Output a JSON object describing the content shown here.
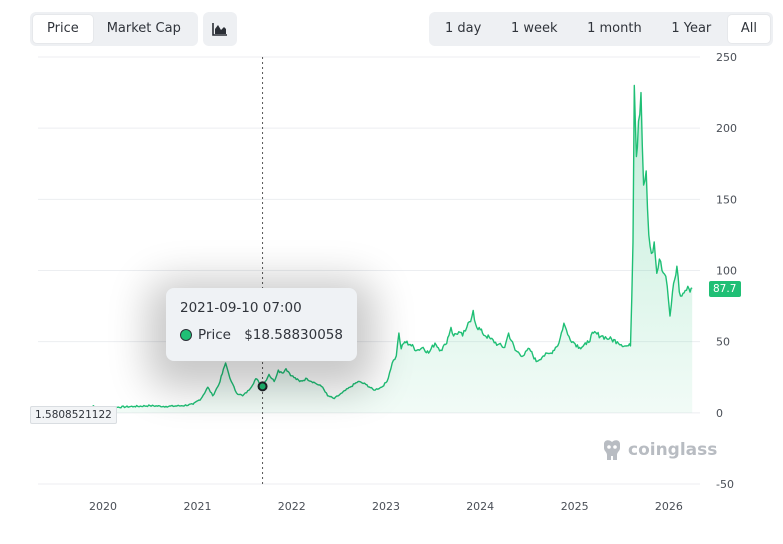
{
  "toolbar": {
    "metric_tabs": [
      {
        "label": "Price",
        "active": true
      },
      {
        "label": "Market Cap",
        "active": false
      }
    ],
    "chart_type_icon": "area-chart-icon",
    "range_tabs": [
      {
        "label": "1 day",
        "active": false
      },
      {
        "label": "1 week",
        "active": false
      },
      {
        "label": "1 month",
        "active": false
      },
      {
        "label": "1 Year",
        "active": false
      },
      {
        "label": "All",
        "active": true
      }
    ]
  },
  "tooltip": {
    "time": "2021-09-10 07:00",
    "series_label": "Price",
    "value": "$18.58830058"
  },
  "start_label": "1.5808521122",
  "last_label": "87.7",
  "watermark": "coinglass",
  "colors": {
    "line": "#1fbf75",
    "fill": "#1fbf75",
    "active_tab_bg": "#ffffff"
  },
  "chart_data": {
    "type": "area",
    "x_tick_labels": [
      "2020",
      "2021",
      "2022",
      "2023",
      "2024",
      "2025",
      "2026"
    ],
    "y_tick_labels": [
      "-50",
      "0",
      "50",
      "100",
      "150",
      "200",
      "250"
    ],
    "ylim": [
      -50,
      250
    ],
    "grid": true,
    "crosshair_x": "2021-09-10",
    "series": [
      {
        "values": [
          [
            "2019-11-10",
            1.58
          ],
          [
            "2019-11-25",
            5
          ],
          [
            "2019-12-15",
            2.5
          ],
          [
            "2020-01-15",
            3
          ],
          [
            "2020-03-01",
            4
          ],
          [
            "2020-05-01",
            4.5
          ],
          [
            "2020-07-01",
            5
          ],
          [
            "2020-09-01",
            4.5
          ],
          [
            "2020-11-01",
            5
          ],
          [
            "2020-12-15",
            6
          ],
          [
            "2021-01-15",
            10
          ],
          [
            "2021-02-10",
            18
          ],
          [
            "2021-03-01",
            12
          ],
          [
            "2021-03-25",
            20
          ],
          [
            "2021-04-20",
            35
          ],
          [
            "2021-05-01",
            28
          ],
          [
            "2021-05-12",
            22
          ],
          [
            "2021-06-01",
            14
          ],
          [
            "2021-06-25",
            12
          ],
          [
            "2021-07-20",
            16
          ],
          [
            "2021-08-15",
            24
          ],
          [
            "2021-09-10",
            18.59
          ],
          [
            "2021-10-05",
            27
          ],
          [
            "2021-10-25",
            22
          ],
          [
            "2021-11-10",
            30
          ],
          [
            "2021-11-25",
            28
          ],
          [
            "2021-12-10",
            31
          ],
          [
            "2022-01-01",
            26
          ],
          [
            "2022-02-01",
            22
          ],
          [
            "2022-03-01",
            24
          ],
          [
            "2022-04-01",
            21
          ],
          [
            "2022-05-01",
            18
          ],
          [
            "2022-05-20",
            12
          ],
          [
            "2022-06-15",
            10
          ],
          [
            "2022-07-15",
            14
          ],
          [
            "2022-08-15",
            18
          ],
          [
            "2022-09-15",
            22
          ],
          [
            "2022-10-15",
            20
          ],
          [
            "2022-11-15",
            16
          ],
          [
            "2022-12-15",
            18
          ],
          [
            "2023-01-05",
            22
          ],
          [
            "2023-01-25",
            35
          ],
          [
            "2023-02-10",
            40
          ],
          [
            "2023-02-20",
            56
          ],
          [
            "2023-03-01",
            45
          ],
          [
            "2023-03-15",
            50
          ],
          [
            "2023-04-05",
            48
          ],
          [
            "2023-05-01",
            44
          ],
          [
            "2023-05-25",
            46
          ],
          [
            "2023-06-15",
            42
          ],
          [
            "2023-07-10",
            49
          ],
          [
            "2023-08-01",
            44
          ],
          [
            "2023-08-20",
            48
          ],
          [
            "2023-09-10",
            60
          ],
          [
            "2023-09-20",
            54
          ],
          [
            "2023-10-10",
            57
          ],
          [
            "2023-10-25",
            54
          ],
          [
            "2023-11-10",
            60
          ],
          [
            "2023-11-25",
            64
          ],
          [
            "2023-12-05",
            72
          ],
          [
            "2023-12-15",
            62
          ],
          [
            "2024-01-10",
            56
          ],
          [
            "2024-02-10",
            52
          ],
          [
            "2024-03-10",
            48
          ],
          [
            "2024-04-05",
            46
          ],
          [
            "2024-04-20",
            56
          ],
          [
            "2024-05-15",
            44
          ],
          [
            "2024-06-15",
            40
          ],
          [
            "2024-07-10",
            45
          ],
          [
            "2024-08-05",
            36
          ],
          [
            "2024-09-01",
            40
          ],
          [
            "2024-10-01",
            42
          ],
          [
            "2024-11-01",
            49
          ],
          [
            "2024-11-20",
            63
          ],
          [
            "2024-12-05",
            55
          ],
          [
            "2024-12-25",
            50
          ],
          [
            "2025-01-20",
            46
          ],
          [
            "2025-02-15",
            48
          ],
          [
            "2025-03-15",
            56
          ],
          [
            "2025-04-15",
            54
          ],
          [
            "2025-05-15",
            52
          ],
          [
            "2025-06-15",
            50
          ],
          [
            "2025-07-15",
            47
          ],
          [
            "2025-08-05",
            47
          ],
          [
            "2025-08-15",
            120
          ],
          [
            "2025-08-20",
            230
          ],
          [
            "2025-08-28",
            180
          ],
          [
            "2025-09-05",
            205
          ],
          [
            "2025-09-15",
            225
          ],
          [
            "2025-09-25",
            160
          ],
          [
            "2025-10-05",
            170
          ],
          [
            "2025-10-15",
            125
          ],
          [
            "2025-10-25",
            112
          ],
          [
            "2025-11-05",
            120
          ],
          [
            "2025-11-15",
            98
          ],
          [
            "2025-11-25",
            108
          ],
          [
            "2025-12-05",
            100
          ],
          [
            "2025-12-20",
            96
          ],
          [
            "2026-01-05",
            68
          ],
          [
            "2026-01-15",
            85
          ],
          [
            "2026-02-01",
            103
          ],
          [
            "2026-02-10",
            85
          ],
          [
            "2026-02-20",
            82
          ],
          [
            "2026-03-05",
            86
          ],
          [
            "2026-03-20",
            87
          ],
          [
            "2026-04-01",
            87.7
          ]
        ]
      }
    ]
  }
}
